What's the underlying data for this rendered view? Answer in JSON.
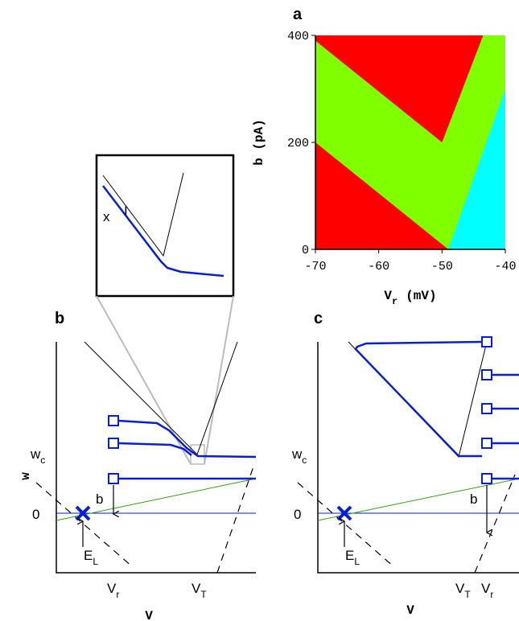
{
  "chart_data": {
    "type": "region",
    "panel_label": "a",
    "xlabel": [
      "V",
      "r",
      "(mV)"
    ],
    "ylabel": "b (pA)",
    "xlim": [
      -70,
      -40
    ],
    "ylim": [
      0,
      400
    ],
    "xticks": [
      -70,
      -60,
      -50,
      -40
    ],
    "yticks": [
      0,
      200,
      400
    ],
    "regions": [
      {
        "color": "#80ff00",
        "x": [
          -70,
          -40,
          -40,
          -70
        ],
        "y": [
          0,
          0,
          400,
          400
        ]
      },
      {
        "color": "#ff0000",
        "x": [
          -70,
          -70,
          -43.5,
          -50
        ],
        "y": [
          390,
          400,
          400,
          200
        ]
      },
      {
        "color": "#ff0000",
        "x": [
          -70,
          -70,
          -49
        ],
        "y": [
          0,
          200,
          0
        ]
      },
      {
        "color": "#00ffff",
        "x": [
          -49,
          -40,
          -40
        ],
        "y": [
          0,
          0,
          300
        ]
      }
    ]
  },
  "panels": [
    {
      "label": "b",
      "xlabel": "V",
      "ylabel": "w",
      "wc": [
        "w",
        "c"
      ],
      "zero": "0",
      "el": [
        "E",
        "L"
      ],
      "jump": "b",
      "vr": [
        "V",
        "r"
      ],
      "vt": [
        "V",
        "T"
      ]
    },
    {
      "label": "c",
      "xlabel": "V",
      "wc": [
        "w",
        "c"
      ],
      "zero": "0",
      "el": [
        "E",
        "L"
      ],
      "jump": "b",
      "vr": [
        "V",
        "r"
      ],
      "vt": [
        "V",
        "T"
      ]
    }
  ],
  "inset": {
    "labels": [
      "x",
      "I"
    ]
  }
}
